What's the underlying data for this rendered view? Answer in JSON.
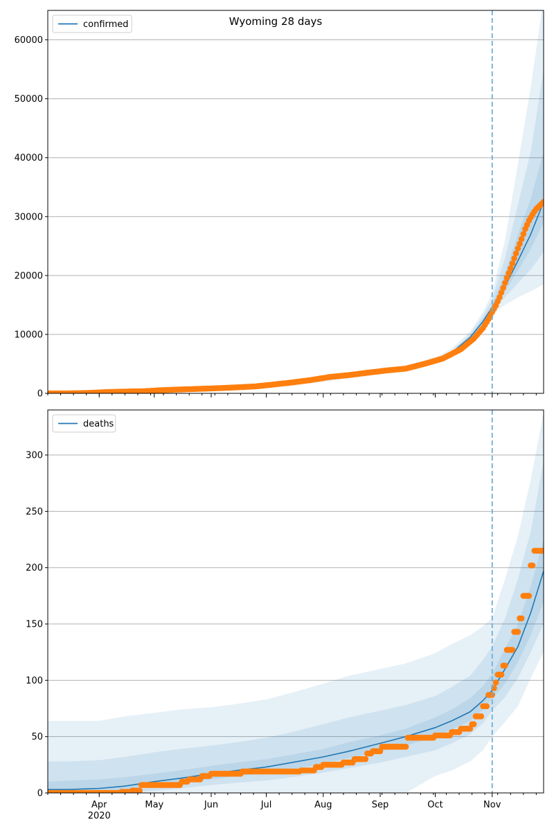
{
  "figure": {
    "title": "Wyoming 28 days"
  },
  "colors": {
    "model_line": "#1f77b4",
    "observed": "#ff7f0e",
    "band": "#1f77b4",
    "grid": "#b0b0b0",
    "forecast_marker": "#6baed6"
  },
  "x_axis": {
    "tick_labels": [
      "Apr",
      "May",
      "Jun",
      "Jul",
      "Aug",
      "Sep",
      "Oct",
      "Nov"
    ],
    "year_label": "2020",
    "range": [
      "2020-03-04",
      "2020-11-29"
    ]
  },
  "chart_data": [
    {
      "type": "line",
      "legend_label": "confirmed",
      "legend_position": "top-left",
      "grid": "y",
      "ylim": [
        0,
        65000
      ],
      "yticks": [
        0,
        10000,
        20000,
        30000,
        40000,
        50000,
        60000
      ],
      "forecast_start": "2020-11-01",
      "model_series": {
        "name": "confirmed",
        "x": [
          "2020-03-04",
          "2020-03-15",
          "2020-04-01",
          "2020-04-15",
          "2020-05-01",
          "2020-05-15",
          "2020-06-01",
          "2020-06-15",
          "2020-07-01",
          "2020-07-15",
          "2020-08-01",
          "2020-08-15",
          "2020-09-01",
          "2020-09-15",
          "2020-10-01",
          "2020-10-10",
          "2020-10-20",
          "2020-10-27",
          "2020-11-01",
          "2020-11-08",
          "2020-11-15",
          "2020-11-22",
          "2020-11-29"
        ],
        "y": [
          30,
          60,
          220,
          330,
          470,
          620,
          870,
          1070,
          1330,
          1800,
          2450,
          3050,
          3720,
          4250,
          5500,
          6900,
          9500,
          12200,
          14600,
          18200,
          22500,
          27000,
          32500
        ],
        "bands": [
          {
            "lower": [
              0,
              0,
              80,
              150,
              250,
              350,
              550,
              750,
              950,
              1350,
              1950,
              2550,
              3250,
              3800,
              5000,
              6400,
              8800,
              11300,
              13500,
              15000,
              16300,
              17300,
              18500
            ],
            "upper": [
              400,
              450,
              550,
              650,
              750,
              900,
              1150,
              1350,
              1650,
              2150,
              2850,
              3500,
              4200,
              4750,
              6100,
              7600,
              10500,
              13800,
              17000,
              26000,
              39000,
              52000,
              67000
            ]
          },
          {
            "lower": [
              0,
              0,
              120,
              200,
              310,
              430,
              650,
              850,
              1080,
              1500,
              2120,
              2720,
              3420,
              3960,
              5180,
              6580,
              9050,
              11650,
              14000,
              16300,
              18700,
              21000,
              24000
            ],
            "upper": [
              250,
              300,
              400,
              500,
              650,
              800,
              1050,
              1250,
              1550,
              2050,
              2700,
              3300,
              3980,
              4520,
              5820,
              7240,
              10050,
              13100,
              16000,
              23000,
              32000,
              41000,
              55000
            ]
          },
          {
            "lower": [
              0,
              10,
              160,
              260,
              380,
              510,
              740,
              940,
              1190,
              1640,
              2270,
              2870,
              3560,
              4090,
              5320,
              6720,
              9250,
              11900,
              14300,
              17400,
              20800,
              24500,
              29000
            ],
            "upper": [
              110,
              150,
              300,
              420,
              560,
              720,
              980,
              1190,
              1460,
              1940,
              2610,
              3210,
              3870,
              4400,
              5680,
              7090,
              9800,
              12600,
              15100,
              20500,
              27000,
              33000,
              41000
            ]
          }
        ]
      },
      "observed_series": {
        "name": "observed",
        "points": [
          [
            "2020-03-04",
            0
          ],
          [
            "2020-03-15",
            5
          ],
          [
            "2020-03-25",
            50
          ],
          [
            "2020-04-05",
            220
          ],
          [
            "2020-04-15",
            300
          ],
          [
            "2020-04-25",
            360
          ],
          [
            "2020-05-05",
            540
          ],
          [
            "2020-05-15",
            660
          ],
          [
            "2020-05-25",
            760
          ],
          [
            "2020-06-05",
            880
          ],
          [
            "2020-06-15",
            1020
          ],
          [
            "2020-06-25",
            1180
          ],
          [
            "2020-07-05",
            1500
          ],
          [
            "2020-07-15",
            1850
          ],
          [
            "2020-07-25",
            2250
          ],
          [
            "2020-08-05",
            2800
          ],
          [
            "2020-08-15",
            3100
          ],
          [
            "2020-08-25",
            3500
          ],
          [
            "2020-09-05",
            3900
          ],
          [
            "2020-09-15",
            4200
          ],
          [
            "2020-09-25",
            5000
          ],
          [
            "2020-10-05",
            5900
          ],
          [
            "2020-10-15",
            7500
          ],
          [
            "2020-10-22",
            9300
          ],
          [
            "2020-10-27",
            11100
          ],
          [
            "2020-10-30",
            12600
          ],
          [
            "2020-11-01",
            13800
          ],
          [
            "2020-11-03",
            14900
          ],
          [
            "2020-11-05",
            16300
          ],
          [
            "2020-11-07",
            17900
          ],
          [
            "2020-11-09",
            19600
          ],
          [
            "2020-11-11",
            21200
          ],
          [
            "2020-11-13",
            22900
          ],
          [
            "2020-11-15",
            24600
          ],
          [
            "2020-11-17",
            26200
          ],
          [
            "2020-11-19",
            27900
          ],
          [
            "2020-11-21",
            29300
          ],
          [
            "2020-11-23",
            30400
          ],
          [
            "2020-11-25",
            31300
          ],
          [
            "2020-11-27",
            31900
          ],
          [
            "2020-11-29",
            32500
          ]
        ]
      }
    },
    {
      "type": "line",
      "legend_label": "deaths",
      "legend_position": "top-left",
      "grid": "y",
      "ylim": [
        0,
        340
      ],
      "yticks": [
        0,
        50,
        100,
        150,
        200,
        250,
        300
      ],
      "forecast_start": "2020-11-01",
      "model_series": {
        "name": "deaths",
        "x": [
          "2020-03-04",
          "2020-03-15",
          "2020-04-01",
          "2020-04-15",
          "2020-05-01",
          "2020-05-15",
          "2020-06-01",
          "2020-06-15",
          "2020-07-01",
          "2020-07-15",
          "2020-08-01",
          "2020-08-15",
          "2020-09-01",
          "2020-09-15",
          "2020-10-01",
          "2020-10-10",
          "2020-10-20",
          "2020-10-27",
          "2020-11-01",
          "2020-11-08",
          "2020-11-15",
          "2020-11-22",
          "2020-11-29"
        ],
        "y": [
          3,
          3,
          4,
          6,
          10,
          13,
          17,
          20,
          23,
          27,
          32,
          37,
          44,
          50,
          58,
          64,
          72,
          82,
          91,
          110,
          130,
          160,
          197
        ],
        "bands": [
          {
            "lower": [
              0,
              0,
              0,
              0,
              0,
              0,
              0,
              0,
              0,
              0,
              0,
              0,
              0,
              0,
              15,
              20,
              28,
              38,
              50,
              63,
              77,
              102,
              125
            ],
            "upper": [
              64,
              64,
              64,
              68,
              71,
              74,
              76,
              79,
              83,
              89,
              97,
              104,
              110,
              115,
              124,
              132,
              140,
              148,
              155,
              190,
              228,
              278,
              338
            ]
          },
          {
            "lower": [
              0,
              0,
              0,
              0,
              2,
              4,
              7,
              9,
              11,
              14,
              18,
              22,
              27,
              32,
              38,
              44,
              52,
              62,
              73,
              85,
              102,
              125,
              150
            ],
            "upper": [
              28,
              28,
              29,
              32,
              36,
              39,
              42,
              45,
              49,
              54,
              61,
              67,
              73,
              78,
              86,
              94,
              104,
              118,
              130,
              155,
              190,
              232,
              295
            ]
          },
          {
            "lower": [
              0,
              0,
              1,
              3,
              6,
              9,
              12,
              15,
              18,
              21,
              26,
              31,
              37,
              42,
              50,
              56,
              64,
              74,
              84,
              97,
              116,
              140,
              170
            ],
            "upper": [
              10,
              11,
              12,
              14,
              17,
              20,
              24,
              27,
              30,
              34,
              39,
              45,
              51,
              57,
              67,
              74,
              84,
              95,
              106,
              128,
              150,
              183,
              225
            ]
          }
        ]
      },
      "observed_series": {
        "name": "observed",
        "steps": [
          [
            "2020-03-04",
            0
          ],
          [
            "2020-04-13",
            1
          ],
          [
            "2020-04-19",
            2
          ],
          [
            "2020-04-24",
            7
          ],
          [
            "2020-05-16",
            10
          ],
          [
            "2020-05-20",
            12
          ],
          [
            "2020-05-27",
            15
          ],
          [
            "2020-06-01",
            17
          ],
          [
            "2020-06-18",
            19
          ],
          [
            "2020-07-20",
            20
          ],
          [
            "2020-07-28",
            23
          ],
          [
            "2020-08-01",
            25
          ],
          [
            "2020-08-12",
            27
          ],
          [
            "2020-08-18",
            30
          ],
          [
            "2020-08-25",
            35
          ],
          [
            "2020-08-28",
            37
          ],
          [
            "2020-09-02",
            41
          ],
          [
            "2020-09-16",
            49
          ],
          [
            "2020-09-21",
            49
          ],
          [
            "2020-10-01",
            51
          ],
          [
            "2020-10-10",
            54
          ],
          [
            "2020-10-15",
            57
          ],
          [
            "2020-10-21",
            61
          ],
          [
            "2020-10-23",
            68
          ],
          [
            "2020-10-27",
            77
          ],
          [
            "2020-10-30",
            87
          ],
          [
            "2020-11-02",
            93
          ],
          [
            "2020-11-03",
            98
          ],
          [
            "2020-11-04",
            105
          ],
          [
            "2020-11-07",
            113
          ],
          [
            "2020-11-09",
            127
          ],
          [
            "2020-11-13",
            143
          ],
          [
            "2020-11-16",
            155
          ],
          [
            "2020-11-18",
            175
          ],
          [
            "2020-11-22",
            202
          ],
          [
            "2020-11-24",
            215
          ],
          [
            "2020-11-29",
            215
          ]
        ]
      }
    }
  ]
}
